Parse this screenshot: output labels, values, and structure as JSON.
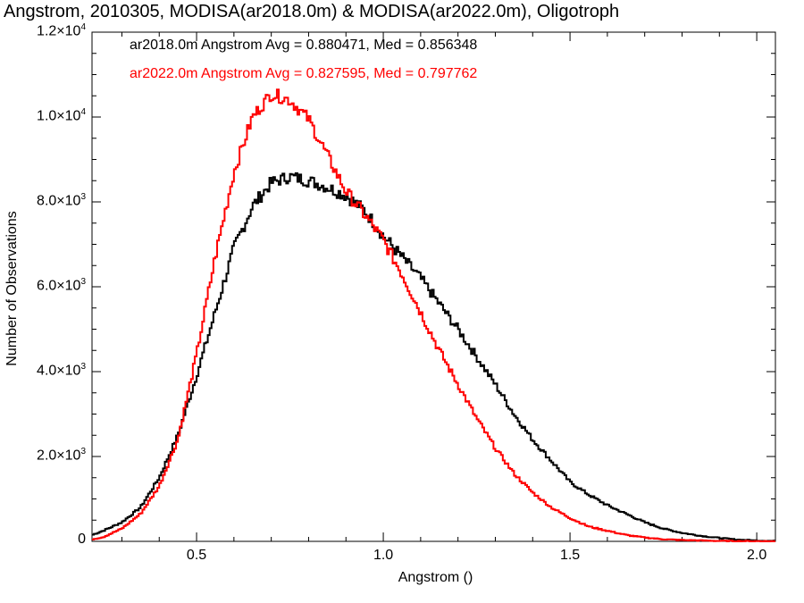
{
  "title": "Angstrom, 2010305, MODISA(ar2018.0m) & MODISA(ar2022.0m), Oligotroph",
  "annotations": [
    {
      "text": "ar2018.0m Angstrom Avg = 0.880471, Med = 0.856348",
      "color": "#000000"
    },
    {
      "text": "ar2022.0m Angstrom Avg = 0.827595, Med = 0.797762",
      "color": "#ff0000"
    }
  ],
  "chart_data": {
    "type": "line",
    "title": "Angstrom, 2010305, MODISA(ar2018.0m) & MODISA(ar2022.0m), Oligotroph",
    "xlabel": "Angstrom ()",
    "ylabel": "Number of Observations",
    "xlim": [
      0.22,
      2.05
    ],
    "ylim": [
      0,
      12000
    ],
    "step": true,
    "x_ticks": [
      {
        "value": 0.5,
        "label": "0.5"
      },
      {
        "value": 1.0,
        "label": "1.0"
      },
      {
        "value": 1.5,
        "label": "1.5"
      },
      {
        "value": 2.0,
        "label": "2.0"
      }
    ],
    "y_ticks": [
      {
        "value": 0,
        "mant": "0",
        "exp": ""
      },
      {
        "value": 2000,
        "mant": "2.0×10",
        "exp": "3"
      },
      {
        "value": 4000,
        "mant": "4.0×10",
        "exp": "3"
      },
      {
        "value": 6000,
        "mant": "6.0×10",
        "exp": "3"
      },
      {
        "value": 8000,
        "mant": "8.0×10",
        "exp": "3"
      },
      {
        "value": 10000,
        "mant": "1.0×10",
        "exp": "4"
      },
      {
        "value": 12000,
        "mant": "1.2×10",
        "exp": "4"
      }
    ],
    "series": [
      {
        "name": "ar2018.0m",
        "color": "#000000",
        "points": [
          [
            0.22,
            150
          ],
          [
            0.25,
            250
          ],
          [
            0.3,
            450
          ],
          [
            0.35,
            800
          ],
          [
            0.4,
            1500
          ],
          [
            0.45,
            2500
          ],
          [
            0.5,
            3900
          ],
          [
            0.55,
            5400
          ],
          [
            0.6,
            6900
          ],
          [
            0.65,
            7900
          ],
          [
            0.7,
            8450
          ],
          [
            0.75,
            8600
          ],
          [
            0.8,
            8500
          ],
          [
            0.85,
            8350
          ],
          [
            0.9,
            8150
          ],
          [
            0.95,
            7800
          ],
          [
            1.0,
            7200
          ],
          [
            1.05,
            6700
          ],
          [
            1.1,
            6200
          ],
          [
            1.15,
            5600
          ],
          [
            1.2,
            5000
          ],
          [
            1.25,
            4350
          ],
          [
            1.3,
            3700
          ],
          [
            1.35,
            3000
          ],
          [
            1.4,
            2400
          ],
          [
            1.45,
            1900
          ],
          [
            1.5,
            1400
          ],
          [
            1.55,
            1100
          ],
          [
            1.6,
            850
          ],
          [
            1.65,
            650
          ],
          [
            1.7,
            450
          ],
          [
            1.75,
            300
          ],
          [
            1.8,
            200
          ],
          [
            1.85,
            130
          ],
          [
            1.9,
            80
          ],
          [
            1.95,
            40
          ],
          [
            2.0,
            20
          ],
          [
            2.05,
            10
          ]
        ]
      },
      {
        "name": "ar2022.0m",
        "color": "#ff0000",
        "points": [
          [
            0.22,
            50
          ],
          [
            0.25,
            100
          ],
          [
            0.3,
            300
          ],
          [
            0.35,
            650
          ],
          [
            0.4,
            1300
          ],
          [
            0.45,
            2400
          ],
          [
            0.5,
            4400
          ],
          [
            0.55,
            6700
          ],
          [
            0.6,
            8700
          ],
          [
            0.65,
            10000
          ],
          [
            0.7,
            10550
          ],
          [
            0.75,
            10400
          ],
          [
            0.8,
            9950
          ],
          [
            0.85,
            9100
          ],
          [
            0.9,
            8250
          ],
          [
            0.95,
            7700
          ],
          [
            1.0,
            7100
          ],
          [
            1.05,
            6300
          ],
          [
            1.1,
            5400
          ],
          [
            1.15,
            4500
          ],
          [
            1.2,
            3700
          ],
          [
            1.25,
            2900
          ],
          [
            1.3,
            2200
          ],
          [
            1.35,
            1600
          ],
          [
            1.4,
            1150
          ],
          [
            1.45,
            800
          ],
          [
            1.5,
            550
          ],
          [
            1.55,
            350
          ],
          [
            1.6,
            250
          ],
          [
            1.65,
            150
          ],
          [
            1.7,
            90
          ],
          [
            1.75,
            50
          ],
          [
            1.8,
            30
          ],
          [
            1.85,
            20
          ],
          [
            1.9,
            10
          ],
          [
            2.0,
            5
          ],
          [
            2.05,
            2
          ]
        ]
      }
    ]
  }
}
